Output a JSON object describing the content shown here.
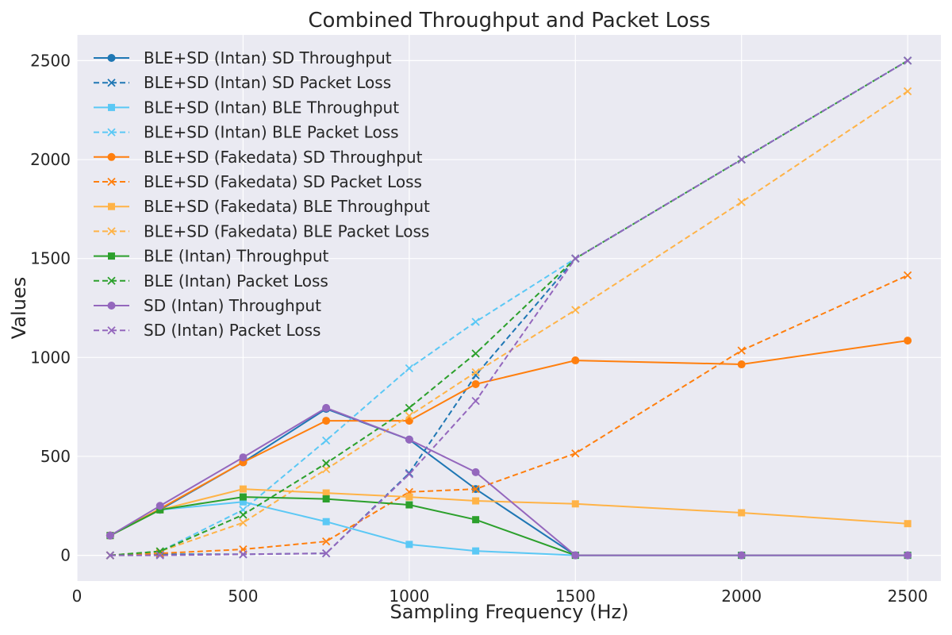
{
  "chart_data": {
    "type": "line",
    "title": "Combined Throughput and Packet Loss",
    "xlabel": "Sampling Frequency (Hz)",
    "ylabel": "Values",
    "xlim": [
      0,
      2600
    ],
    "ylim": [
      -130,
      2630
    ],
    "x_ticks": [
      0,
      500,
      1000,
      1500,
      2000,
      2500
    ],
    "y_ticks": [
      0,
      500,
      1000,
      1500,
      2000,
      2500
    ],
    "grid": true,
    "legend_position": "top-left",
    "series": [
      {
        "name": "BLE+SD (Intan) SD Throughput",
        "color": "#1f77b4",
        "dash": "solid",
        "marker": "circle",
        "x": [
          100,
          250,
          500,
          750,
          1000,
          1200,
          1500,
          2000,
          2500
        ],
        "y": [
          100,
          230,
          470,
          740,
          585,
          335,
          0,
          0,
          0
        ]
      },
      {
        "name": "BLE+SD (Intan) SD Packet Loss",
        "color": "#1f77b4",
        "dash": "dashed",
        "marker": "x",
        "x": [
          100,
          250,
          500,
          750,
          1000,
          1200,
          1500,
          2000,
          2500
        ],
        "y": [
          0,
          5,
          5,
          10,
          415,
          910,
          1500,
          2000,
          2500
        ]
      },
      {
        "name": "BLE+SD (Intan) BLE Throughput",
        "color": "#5bc8f5",
        "dash": "solid",
        "marker": "square",
        "x": [
          100,
          250,
          500,
          750,
          1000,
          1200,
          1500,
          2000,
          2500
        ],
        "y": [
          100,
          230,
          270,
          170,
          55,
          22,
          0,
          0,
          0
        ]
      },
      {
        "name": "BLE+SD (Intan) BLE Packet Loss",
        "color": "#5bc8f5",
        "dash": "dashed",
        "marker": "x",
        "x": [
          100,
          250,
          500,
          750,
          1000,
          1200,
          1500,
          2000,
          2500
        ],
        "y": [
          0,
          20,
          230,
          580,
          945,
          1180,
          1500,
          2000,
          2500
        ]
      },
      {
        "name": "BLE+SD (Fakedata) SD Throughput",
        "color": "#ff7f0e",
        "dash": "solid",
        "marker": "circle",
        "x": [
          100,
          250,
          500,
          750,
          1000,
          1200,
          1500,
          2000,
          2500
        ],
        "y": [
          100,
          235,
          470,
          680,
          680,
          865,
          985,
          965,
          1085
        ]
      },
      {
        "name": "BLE+SD (Fakedata) SD Packet Loss",
        "color": "#ff7f0e",
        "dash": "dashed",
        "marker": "x",
        "x": [
          100,
          250,
          500,
          750,
          1000,
          1200,
          1500,
          2000,
          2500
        ],
        "y": [
          0,
          10,
          30,
          70,
          320,
          335,
          515,
          1035,
          1415
        ]
      },
      {
        "name": "BLE+SD (Fakedata) BLE Throughput",
        "color": "#ffb347",
        "dash": "solid",
        "marker": "square",
        "x": [
          100,
          250,
          500,
          750,
          1000,
          1200,
          1500,
          2000,
          2500
        ],
        "y": [
          100,
          230,
          335,
          315,
          295,
          275,
          260,
          215,
          160
        ]
      },
      {
        "name": "BLE+SD (Fakedata) BLE Packet Loss",
        "color": "#ffb347",
        "dash": "dashed",
        "marker": "x",
        "x": [
          100,
          250,
          500,
          750,
          1000,
          1200,
          1500,
          2000,
          2500
        ],
        "y": [
          0,
          20,
          165,
          435,
          705,
          925,
          1240,
          1785,
          2345
        ]
      },
      {
        "name": "BLE (Intan) Throughput",
        "color": "#2ca02c",
        "dash": "solid",
        "marker": "square",
        "x": [
          100,
          250,
          500,
          750,
          1000,
          1200,
          1500,
          2000,
          2500
        ],
        "y": [
          100,
          230,
          295,
          285,
          255,
          180,
          0,
          0,
          0
        ]
      },
      {
        "name": "BLE (Intan) Packet Loss",
        "color": "#2ca02c",
        "dash": "dashed",
        "marker": "x",
        "x": [
          100,
          250,
          500,
          750,
          1000,
          1200,
          1500,
          2000,
          2500
        ],
        "y": [
          0,
          20,
          205,
          465,
          745,
          1020,
          1500,
          2000,
          2500
        ]
      },
      {
        "name": "SD (Intan) Throughput",
        "color": "#9467bd",
        "dash": "solid",
        "marker": "circle",
        "x": [
          100,
          250,
          500,
          750,
          1000,
          1200,
          1500,
          2000,
          2500
        ],
        "y": [
          100,
          250,
          495,
          745,
          585,
          420,
          0,
          0,
          0
        ]
      },
      {
        "name": "SD (Intan) Packet Loss",
        "color": "#9467bd",
        "dash": "dashed",
        "marker": "x",
        "x": [
          100,
          250,
          500,
          750,
          1000,
          1200,
          1500,
          2000,
          2500
        ],
        "y": [
          0,
          0,
          5,
          10,
          410,
          780,
          1500,
          2000,
          2500
        ]
      }
    ]
  }
}
